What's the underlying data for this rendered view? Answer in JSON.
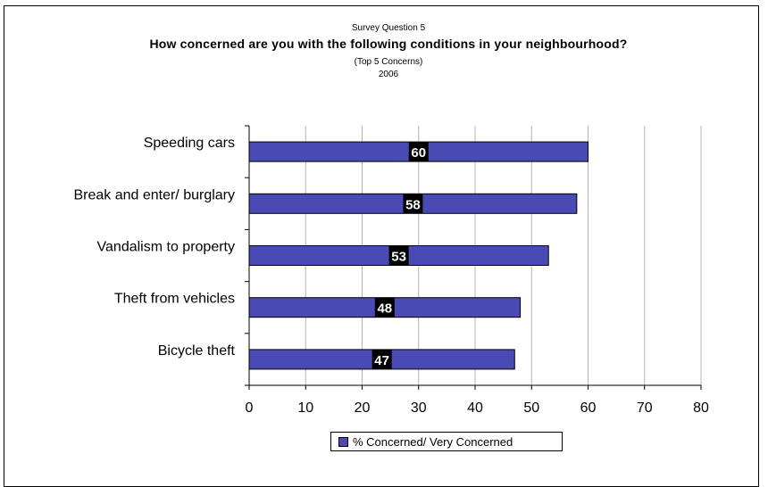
{
  "chart_data": {
    "type": "bar",
    "orientation": "horizontal",
    "pre_title": "Survey Question 5",
    "title": "How concerned are you with the following conditions in your neighbourhood?",
    "subtitle": "(Top 5 Concerns)",
    "year": "2006",
    "categories": [
      "Speeding cars",
      "Break and enter/ burglary",
      "Vandalism to property",
      "Theft from vehicles",
      "Bicycle theft"
    ],
    "series": [
      {
        "name": "% Concerned/ Very Concerned",
        "values": [
          60,
          58,
          53,
          48,
          47
        ],
        "color": "#4a4ab4"
      }
    ],
    "xlim": [
      0,
      80
    ],
    "x_ticks": [
      0,
      10,
      20,
      30,
      40,
      50,
      60,
      70,
      80
    ],
    "grid": true,
    "legend": "bottom",
    "data_labels": true
  }
}
